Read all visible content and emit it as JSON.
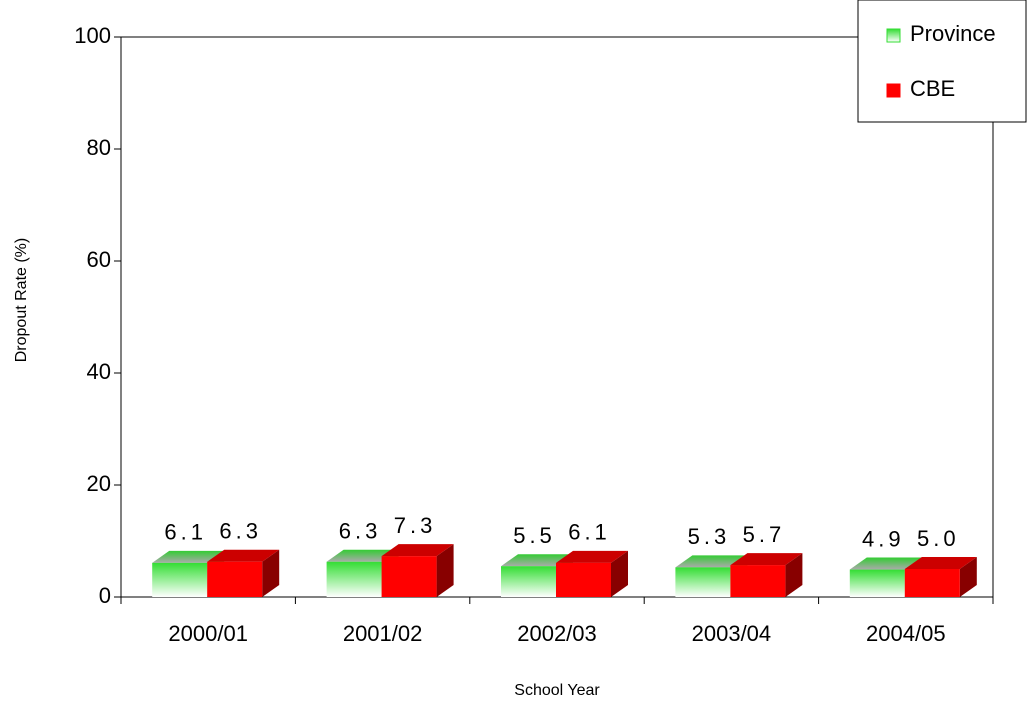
{
  "chart_data": {
    "type": "bar3d",
    "categories": [
      "2000/01",
      "2001/02",
      "2002/03",
      "2003/04",
      "2004/05"
    ],
    "series": [
      {
        "name": "Province",
        "color": "#33dd33",
        "values": [
          6.1,
          6.3,
          5.5,
          5.3,
          4.9
        ],
        "value_labels": [
          "6.1",
          "6.3",
          "5.5",
          "5.3",
          "4.9"
        ]
      },
      {
        "name": "CBE",
        "color": "#ff0000",
        "values": [
          6.3,
          7.3,
          6.1,
          5.7,
          5.0
        ],
        "value_labels": [
          "6.3",
          "7.3",
          "6.1",
          "5.7",
          "5.0"
        ]
      }
    ],
    "xlabel": "School Year",
    "ylabel": "Dropout Rate (%)",
    "ylim": [
      0,
      100
    ],
    "yticks": [
      0,
      20,
      40,
      60,
      80,
      100
    ],
    "legend": "upper right"
  }
}
